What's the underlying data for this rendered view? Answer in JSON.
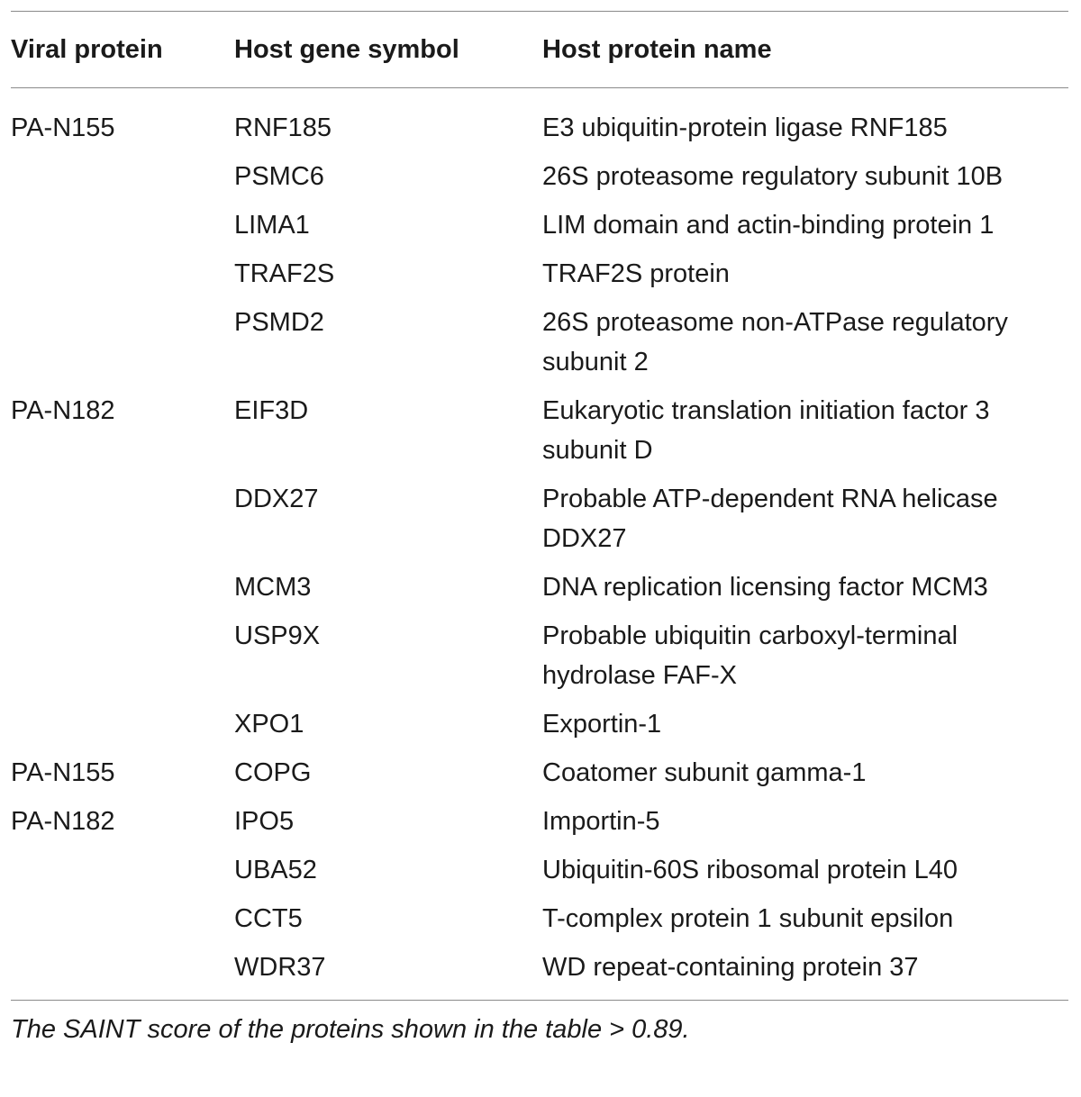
{
  "table": {
    "headers": [
      "Viral protein",
      "Host gene symbol",
      "Host protein name"
    ],
    "rows": [
      {
        "viral": "PA-N155",
        "gene": "RNF185",
        "protein": "E3 ubiquitin-protein ligase RNF185"
      },
      {
        "viral": "",
        "gene": "PSMC6",
        "protein": "26S proteasome regulatory subunit 10B"
      },
      {
        "viral": "",
        "gene": "LIMA1",
        "protein": "LIM domain and actin-binding protein 1"
      },
      {
        "viral": "",
        "gene": "TRAF2S",
        "protein": "TRAF2S protein"
      },
      {
        "viral": "",
        "gene": "PSMD2",
        "protein": "26S proteasome non-ATPase regulatory subunit 2"
      },
      {
        "viral": "PA-N182",
        "gene": "EIF3D",
        "protein": "Eukaryotic translation initiation factor 3 subunit D"
      },
      {
        "viral": "",
        "gene": "DDX27",
        "protein": "Probable ATP-dependent RNA helicase DDX27"
      },
      {
        "viral": "",
        "gene": "MCM3",
        "protein": "DNA replication licensing factor MCM3"
      },
      {
        "viral": "",
        "gene": "USP9X",
        "protein": "Probable ubiquitin carboxyl-terminal hydrolase FAF-X"
      },
      {
        "viral": "",
        "gene": "XPO1",
        "protein": "Exportin-1"
      },
      {
        "viral": "PA-N155",
        "gene": "COPG",
        "protein": "Coatomer subunit gamma-1"
      },
      {
        "viral": "PA-N182",
        "gene": "IPO5",
        "protein": "Importin-5"
      },
      {
        "viral": "",
        "gene": "UBA52",
        "protein": "Ubiquitin-60S ribosomal protein L40"
      },
      {
        "viral": "",
        "gene": "CCT5",
        "protein": "T-complex protein 1 subunit epsilon"
      },
      {
        "viral": "",
        "gene": "WDR37",
        "protein": "WD repeat-containing protein 37"
      }
    ]
  },
  "footnote": "The SAINT score of the proteins shown in the table > 0.89."
}
